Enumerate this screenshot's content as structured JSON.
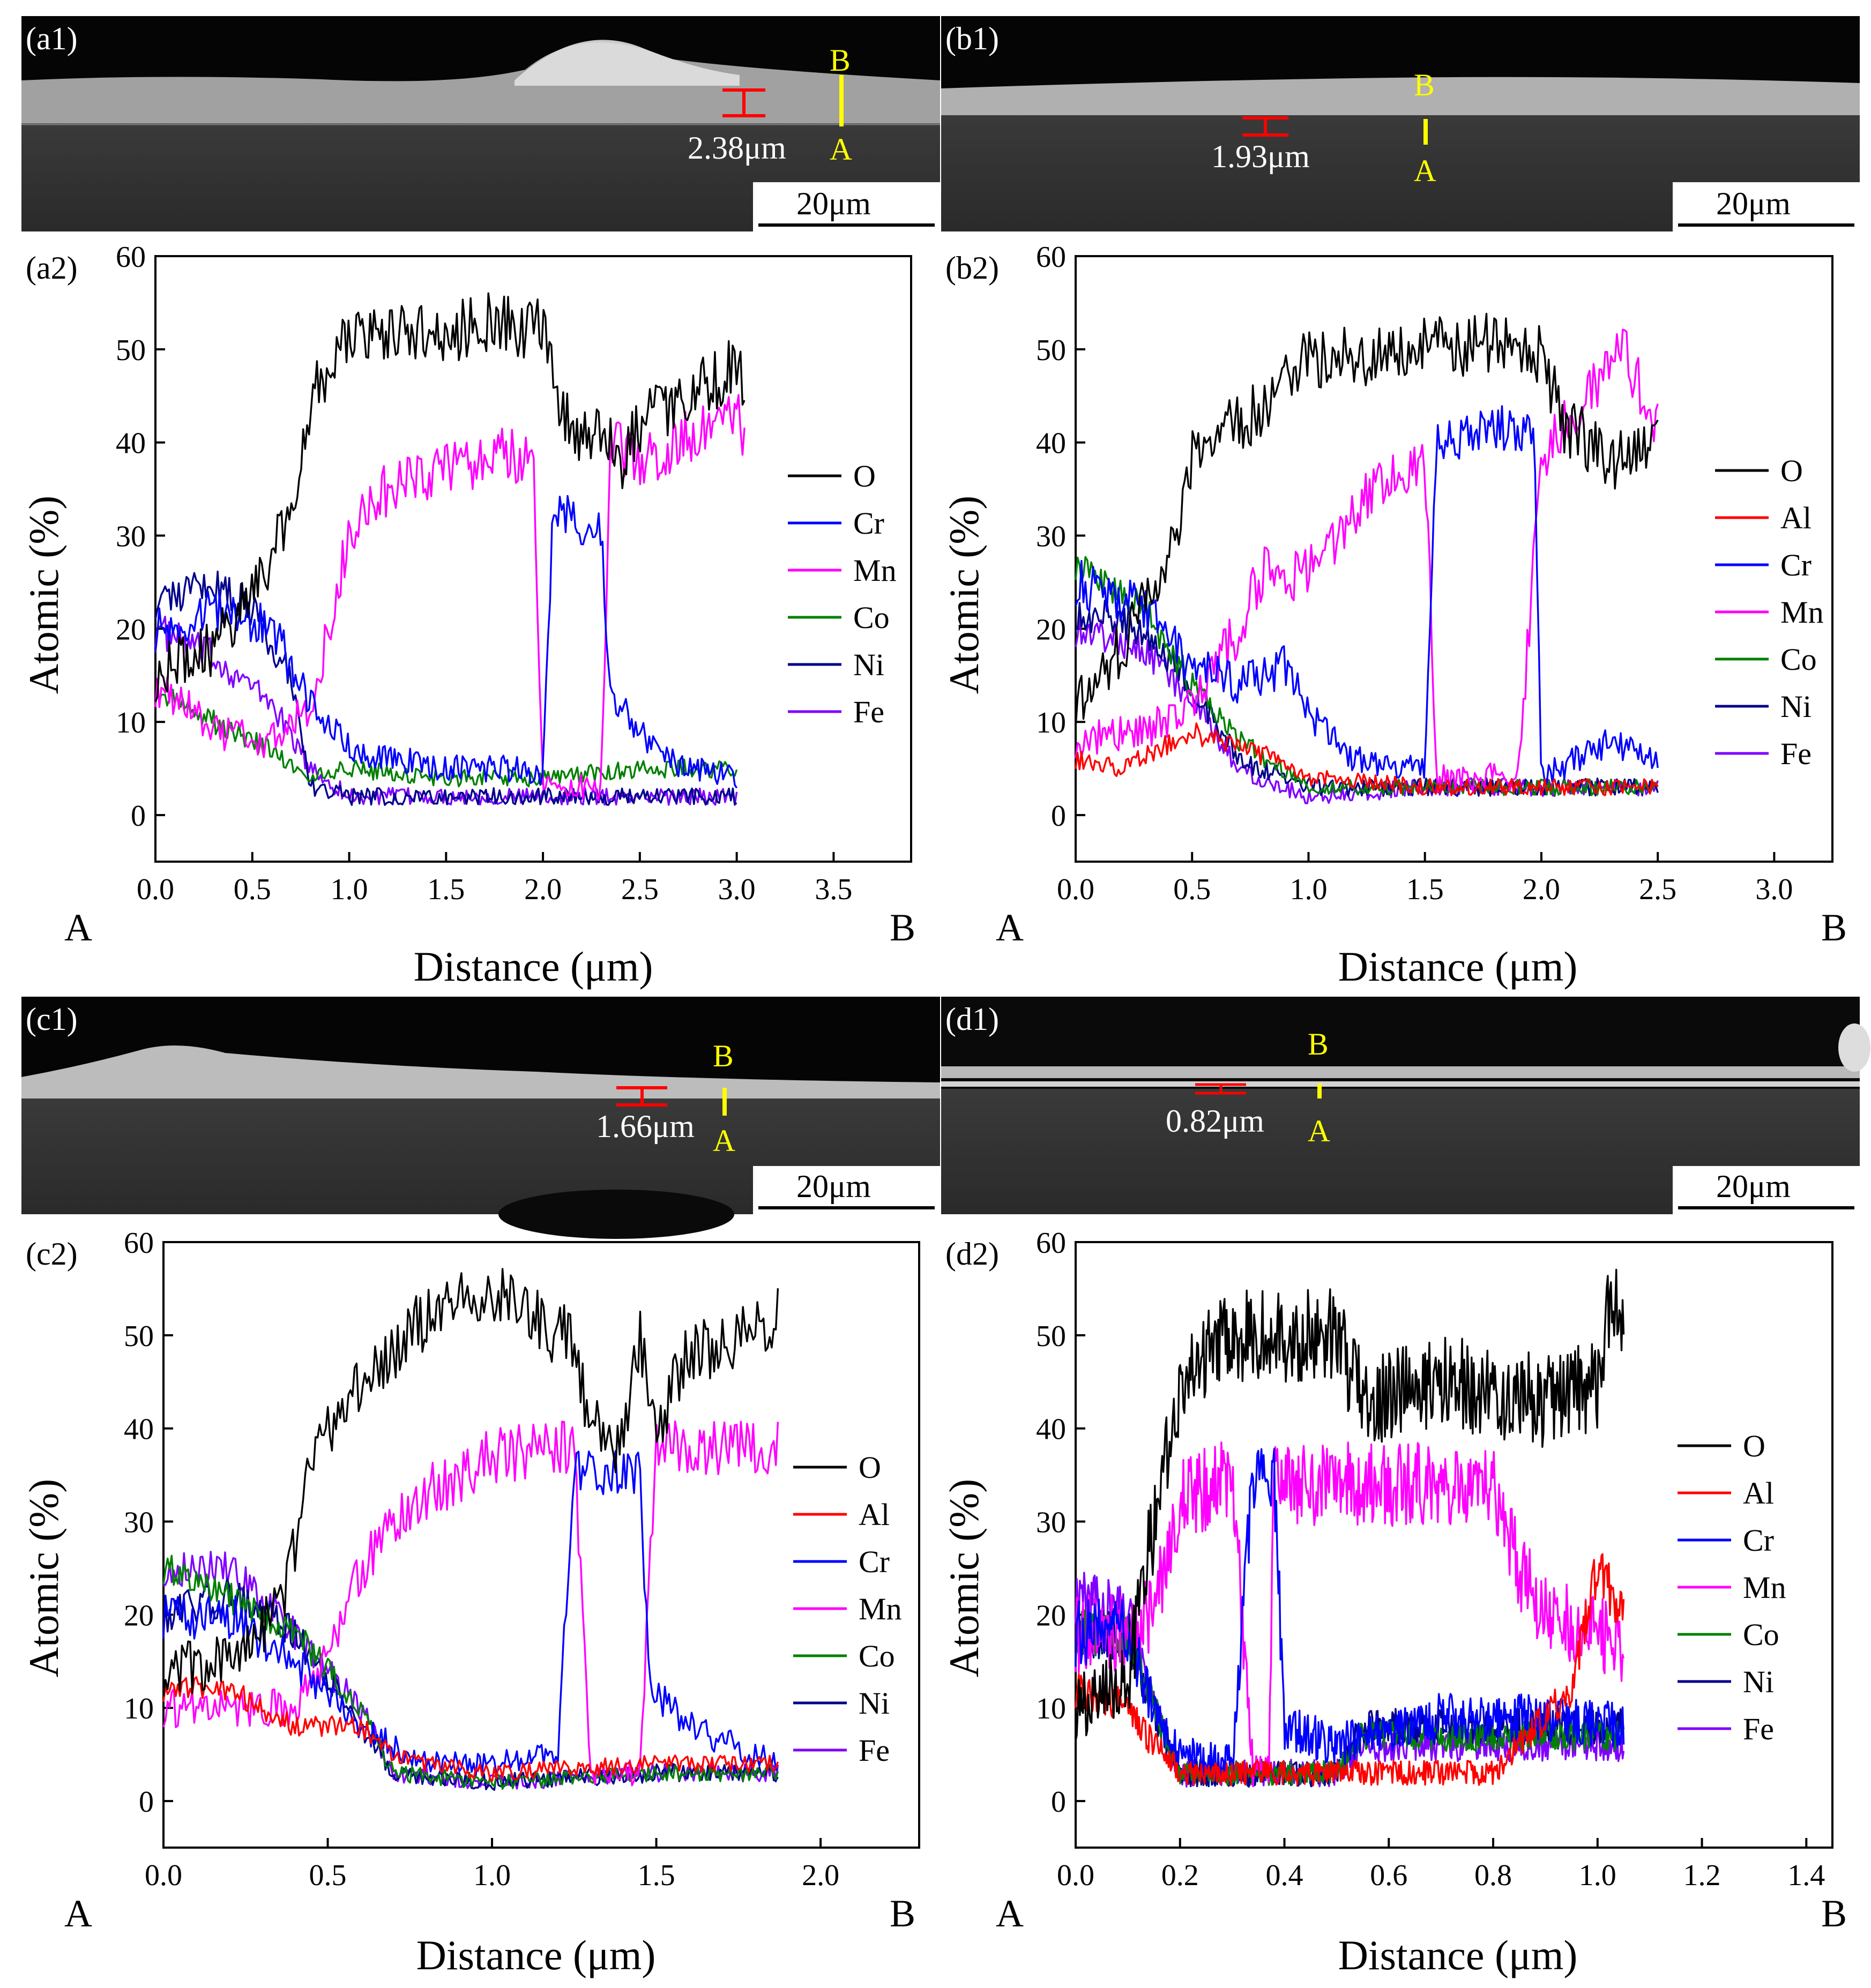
{
  "figure": {
    "common": {
      "scale_bar_label": "20μm",
      "ylabel": "Atomic (%)",
      "xlabel": "Distance (μm)",
      "start_label": "A",
      "end_label": "B"
    },
    "panels": [
      {
        "id": "a",
        "sem_label": "(a1)",
        "chart_label": "(a2)",
        "thickness_label": "2.38μm",
        "marker_top": "B",
        "marker_bottom": "A"
      },
      {
        "id": "b",
        "sem_label": "(b1)",
        "chart_label": "(b2)",
        "thickness_label": "1.93μm",
        "marker_top": "B",
        "marker_bottom": "A"
      },
      {
        "id": "c",
        "sem_label": "(c1)",
        "chart_label": "(c2)",
        "thickness_label": "1.66μm",
        "marker_top": "B",
        "marker_bottom": "A"
      },
      {
        "id": "d",
        "sem_label": "(d1)",
        "chart_label": "(d2)",
        "thickness_label": "0.82μm",
        "marker_top": "B",
        "marker_bottom": "A"
      }
    ]
  },
  "colors": {
    "O": "#000000",
    "Al": "#ff0000",
    "Cr": "#0000ff",
    "Mn": "#ff00ff",
    "Co": "#008000",
    "Ni": "#00008b",
    "Fe": "#8000ff",
    "marker": "#ffff00",
    "thickness_bar": "#ff0000",
    "sem_text": "#ffffff"
  },
  "chart_data": [
    {
      "panel": "a2",
      "type": "line",
      "title": "",
      "xlabel": "Distance (μm)",
      "ylabel": "Atomic (%)",
      "xlim": [
        0,
        3.9
      ],
      "ylim": [
        -5,
        60
      ],
      "xticks": [
        0.0,
        0.5,
        1.0,
        1.5,
        2.0,
        2.5,
        3.0,
        3.5
      ],
      "yticks": [
        0,
        10,
        20,
        30,
        40,
        50,
        60
      ],
      "legend": [
        "O",
        "Cr",
        "Mn",
        "Co",
        "Ni",
        "Fe"
      ],
      "legend_position": "right",
      "series": [
        {
          "name": "O",
          "x": [
            0.0,
            0.3,
            0.5,
            0.7,
            0.8,
            0.9,
            1.0,
            1.5,
            1.8,
            2.0,
            2.1,
            2.2,
            2.3,
            2.4,
            2.5,
            2.7,
            3.0,
            3.04
          ],
          "values": [
            15,
            18,
            24,
            33,
            45,
            48,
            51,
            52,
            53,
            52,
            43,
            40,
            42,
            38,
            42,
            45,
            48,
            45
          ]
        },
        {
          "name": "Cr",
          "x": [
            0.0,
            0.3,
            0.6,
            0.8,
            1.0,
            1.5,
            1.9,
            2.0,
            2.05,
            2.3,
            2.35,
            2.4,
            2.6,
            3.0
          ],
          "values": [
            20,
            22,
            20,
            12,
            7,
            5,
            5,
            4,
            33,
            30,
            12,
            12,
            6,
            4
          ]
        },
        {
          "name": "Mn",
          "x": [
            0.0,
            0.3,
            0.6,
            0.8,
            0.9,
            1.0,
            1.2,
            1.5,
            1.8,
            1.95,
            2.0,
            2.3,
            2.35,
            2.5,
            2.7,
            3.0,
            3.04
          ],
          "values": [
            14,
            9,
            8,
            12,
            20,
            30,
            35,
            37,
            39,
            38,
            3,
            3,
            40,
            38,
            40,
            43,
            40
          ]
        },
        {
          "name": "Co",
          "x": [
            0.0,
            0.3,
            0.6,
            0.8,
            1.0,
            1.5,
            2.0,
            2.5,
            3.0
          ],
          "values": [
            13,
            10,
            7,
            4,
            5,
            4,
            4,
            5,
            5
          ]
        },
        {
          "name": "Ni",
          "x": [
            0.0,
            0.3,
            0.5,
            0.7,
            0.8,
            1.0,
            1.5,
            2.0,
            2.5,
            3.0
          ],
          "values": [
            23,
            25,
            22,
            15,
            3,
            2,
            2,
            2,
            2,
            2
          ]
        },
        {
          "name": "Fe",
          "x": [
            0.0,
            0.3,
            0.6,
            0.8,
            1.0,
            1.5,
            2.0,
            2.5,
            3.0
          ],
          "values": [
            20,
            17,
            12,
            5,
            2,
            2,
            2,
            2,
            2
          ]
        }
      ]
    },
    {
      "panel": "b2",
      "type": "line",
      "title": "",
      "xlabel": "Distance (μm)",
      "ylabel": "Atomic (%)",
      "xlim": [
        0,
        3.25
      ],
      "ylim": [
        -5,
        60
      ],
      "xticks": [
        0.0,
        0.5,
        1.0,
        1.5,
        2.0,
        2.5,
        3.0
      ],
      "yticks": [
        0,
        10,
        20,
        30,
        40,
        50,
        60
      ],
      "legend": [
        "O",
        "Al",
        "Cr",
        "Mn",
        "Co",
        "Ni",
        "Fe"
      ],
      "legend_position": "right",
      "series": [
        {
          "name": "O",
          "x": [
            0.0,
            0.2,
            0.4,
            0.5,
            0.7,
            0.9,
            1.0,
            1.5,
            1.9,
            2.0,
            2.1,
            2.3,
            2.5
          ],
          "values": [
            12,
            18,
            28,
            38,
            42,
            46,
            49,
            50,
            51,
            49,
            42,
            38,
            40
          ]
        },
        {
          "name": "Al",
          "x": [
            0.0,
            0.2,
            0.5,
            0.7,
            0.9,
            1.0,
            1.5,
            2.0,
            2.5
          ],
          "values": [
            6,
            5,
            9,
            7,
            6,
            4,
            3,
            3,
            3
          ]
        },
        {
          "name": "Cr",
          "x": [
            0.0,
            0.3,
            0.5,
            0.7,
            0.9,
            1.0,
            1.2,
            1.5,
            1.55,
            1.8,
            1.97,
            2.0,
            2.3,
            2.5
          ],
          "values": [
            25,
            22,
            16,
            14,
            16,
            11,
            6,
            5,
            40,
            42,
            40,
            4,
            8,
            6
          ]
        },
        {
          "name": "Mn",
          "x": [
            0.0,
            0.3,
            0.5,
            0.7,
            0.8,
            1.0,
            1.2,
            1.5,
            1.55,
            1.9,
            2.0,
            2.2,
            2.35,
            2.5
          ],
          "values": [
            8,
            9,
            12,
            20,
            26,
            26,
            33,
            39,
            4,
            4,
            38,
            45,
            50,
            42
          ]
        },
        {
          "name": "Co",
          "x": [
            0.0,
            0.3,
            0.5,
            0.7,
            1.0,
            1.5,
            2.0,
            2.5
          ],
          "values": [
            27,
            22,
            14,
            8,
            3,
            3,
            3,
            3
          ]
        },
        {
          "name": "Ni",
          "x": [
            0.0,
            0.3,
            0.5,
            0.7,
            1.0,
            1.5,
            2.0,
            2.5
          ],
          "values": [
            22,
            20,
            14,
            6,
            3,
            3,
            3,
            3
          ]
        },
        {
          "name": "Fe",
          "x": [
            0.0,
            0.3,
            0.5,
            0.7,
            1.0,
            1.5,
            2.0,
            2.5
          ],
          "values": [
            20,
            18,
            12,
            5,
            2,
            3,
            3,
            3
          ]
        }
      ]
    },
    {
      "panel": "c2",
      "type": "line",
      "title": "",
      "xlabel": "Distance (μm)",
      "ylabel": "Atomic (%)",
      "xlim": [
        0,
        2.3
      ],
      "ylim": [
        -5,
        60
      ],
      "xticks": [
        0.0,
        0.5,
        1.0,
        1.5,
        2.0
      ],
      "yticks": [
        0,
        10,
        20,
        30,
        40,
        50,
        60
      ],
      "legend": [
        "O",
        "Al",
        "Cr",
        "Mn",
        "Co",
        "Ni",
        "Fe"
      ],
      "legend_position": "right",
      "series": [
        {
          "name": "O",
          "x": [
            0.0,
            0.2,
            0.35,
            0.45,
            0.6,
            0.8,
            1.0,
            1.2,
            1.25,
            1.3,
            1.4,
            1.45,
            1.5,
            1.6,
            1.8,
            1.87
          ],
          "values": [
            14,
            15,
            20,
            36,
            45,
            52,
            55,
            50,
            50,
            40,
            38,
            50,
            40,
            48,
            50,
            52
          ]
        },
        {
          "name": "Al",
          "x": [
            0.0,
            0.2,
            0.4,
            0.6,
            0.7,
            0.8,
            1.0,
            1.5,
            1.87
          ],
          "values": [
            12,
            12,
            8,
            8,
            5,
            4,
            3,
            4,
            4
          ]
        },
        {
          "name": "Cr",
          "x": [
            0.0,
            0.2,
            0.4,
            0.6,
            0.8,
            1.0,
            1.2,
            1.25,
            1.45,
            1.48,
            1.6,
            1.87
          ],
          "values": [
            20,
            20,
            15,
            8,
            4,
            4,
            5,
            35,
            35,
            12,
            8,
            4
          ]
        },
        {
          "name": "Mn",
          "x": [
            0.0,
            0.2,
            0.4,
            0.5,
            0.6,
            0.8,
            1.0,
            1.2,
            1.25,
            1.3,
            1.45,
            1.5,
            1.7,
            1.87
          ],
          "values": [
            10,
            10,
            10,
            15,
            25,
            33,
            37,
            38,
            38,
            3,
            3,
            38,
            38,
            38
          ]
        },
        {
          "name": "Co",
          "x": [
            0.0,
            0.2,
            0.4,
            0.6,
            0.7,
            1.0,
            1.5,
            1.87
          ],
          "values": [
            25,
            22,
            18,
            10,
            3,
            2,
            3,
            3
          ]
        },
        {
          "name": "Ni",
          "x": [
            0.0,
            0.2,
            0.4,
            0.6,
            0.7,
            1.0,
            1.5,
            1.87
          ],
          "values": [
            20,
            22,
            18,
            8,
            3,
            2,
            3,
            3
          ]
        },
        {
          "name": "Fe",
          "x": [
            0.0,
            0.2,
            0.4,
            0.6,
            0.7,
            1.0,
            1.5,
            1.87
          ],
          "values": [
            25,
            25,
            18,
            10,
            3,
            2,
            3,
            3
          ]
        }
      ]
    },
    {
      "panel": "d2",
      "type": "line",
      "title": "",
      "xlabel": "Distance (μm)",
      "ylabel": "Atomic (%)",
      "xlim": [
        0,
        1.45
      ],
      "ylim": [
        -5,
        60
      ],
      "xticks": [
        0.0,
        0.2,
        0.4,
        0.6,
        0.8,
        1.0,
        1.2,
        1.4
      ],
      "yticks": [
        0,
        10,
        20,
        30,
        40,
        50,
        60
      ],
      "legend": [
        "O",
        "Al",
        "Cr",
        "Mn",
        "Co",
        "Ni",
        "Fe"
      ],
      "legend_position": "right",
      "series": [
        {
          "name": "O",
          "x": [
            0.0,
            0.1,
            0.15,
            0.2,
            0.3,
            0.5,
            0.55,
            0.7,
            0.9,
            1.0,
            1.03,
            1.05
          ],
          "values": [
            10,
            13,
            30,
            45,
            50,
            50,
            43,
            45,
            43,
            45,
            55,
            50
          ]
        },
        {
          "name": "Al",
          "x": [
            0.0,
            0.1,
            0.15,
            0.2,
            0.3,
            0.5,
            0.8,
            0.95,
            1.0,
            1.05
          ],
          "values": [
            12,
            10,
            6,
            3,
            3,
            3,
            3,
            12,
            25,
            20
          ]
        },
        {
          "name": "Cr",
          "x": [
            0.0,
            0.1,
            0.15,
            0.2,
            0.3,
            0.34,
            0.38,
            0.4,
            0.5,
            0.7,
            0.9,
            1.05
          ],
          "values": [
            18,
            18,
            10,
            5,
            4,
            35,
            35,
            8,
            6,
            9,
            9,
            8
          ]
        },
        {
          "name": "Mn",
          "x": [
            0.0,
            0.1,
            0.15,
            0.2,
            0.3,
            0.34,
            0.37,
            0.38,
            0.5,
            0.8,
            0.85,
            0.9,
            1.0,
            1.05
          ],
          "values": [
            18,
            18,
            20,
            32,
            35,
            3,
            3,
            34,
            34,
            34,
            25,
            20,
            18,
            16
          ]
        },
        {
          "name": "Co",
          "x": [
            0.0,
            0.1,
            0.15,
            0.2,
            0.5,
            0.55,
            1.05
          ],
          "values": [
            18,
            18,
            10,
            3,
            3,
            7,
            7
          ]
        },
        {
          "name": "Ni",
          "x": [
            0.0,
            0.1,
            0.15,
            0.2,
            0.5,
            0.55,
            1.05
          ],
          "values": [
            18,
            18,
            10,
            3,
            3,
            8,
            8
          ]
        },
        {
          "name": "Fe",
          "x": [
            0.0,
            0.1,
            0.15,
            0.2,
            0.5,
            0.55,
            1.05
          ],
          "values": [
            22,
            20,
            10,
            3,
            3,
            6,
            6
          ]
        }
      ]
    }
  ]
}
